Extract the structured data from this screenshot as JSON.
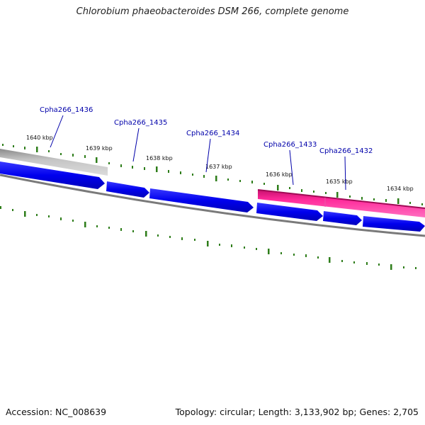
{
  "title": "Chlorobium phaeobacteroides DSM 266, complete genome",
  "footer": {
    "accession": "Accession: NC_008639",
    "summary": "Topology: circular; Length: 3,133,902 bp; Genes: 2,705"
  },
  "ruler": {
    "labels": [
      "1640 kbp",
      "1639 kbp",
      "1638 kbp",
      "1637 kbp",
      "1636 kbp",
      "1635 kbp",
      "1634 kbp"
    ]
  },
  "genes": [
    {
      "name": "Cpha266_1436"
    },
    {
      "name": "Cpha266_1435"
    },
    {
      "name": "Cpha266_1434"
    },
    {
      "name": "Cpha266_1433"
    },
    {
      "name": "Cpha266_1432"
    }
  ],
  "colors": {
    "cds": "#0000ee",
    "rna": "#ff1493",
    "grey": "#bdbdbd",
    "backbone": "#808080",
    "tick": "#2e7d1a",
    "gene_label": "#0000aa"
  }
}
